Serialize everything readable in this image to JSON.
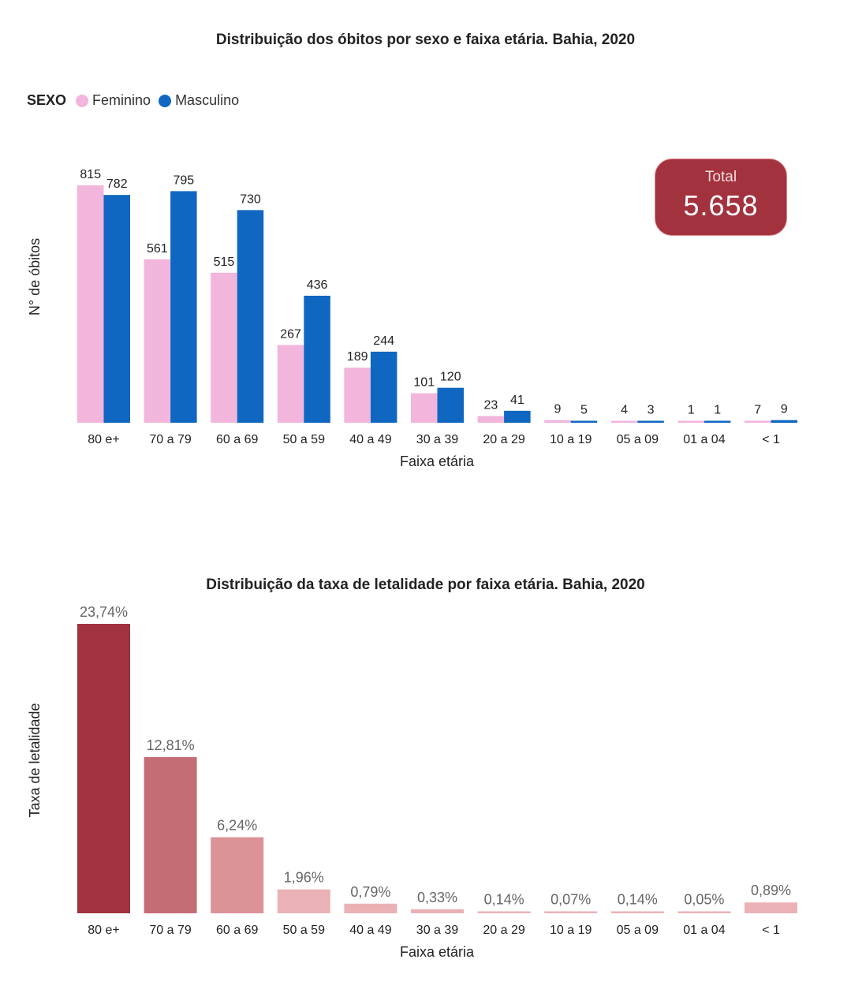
{
  "chart_data": [
    {
      "type": "bar",
      "title": "Distribuição dos óbitos por sexo e faixa etária. Bahia, 2020",
      "xlabel": "Faixa etária",
      "ylabel": "N° de óbitos",
      "legend_title": "SEXO",
      "legend_position": "top-left",
      "categories": [
        "80 e+",
        "70 a 79",
        "60 a 69",
        "50 a 59",
        "40 a 49",
        "30 a 39",
        "20 a 29",
        "10 a 19",
        "05 a 09",
        "01 a 04",
        "< 1"
      ],
      "series": [
        {
          "name": "Feminino",
          "color": "#f2b5dc",
          "values": [
            815,
            561,
            515,
            267,
            189,
            101,
            23,
            9,
            4,
            1,
            7
          ]
        },
        {
          "name": "Masculino",
          "color": "#0f67c1",
          "values": [
            782,
            795,
            730,
            436,
            244,
            120,
            41,
            5,
            3,
            1,
            9
          ]
        }
      ],
      "ylim": [
        0,
        815
      ],
      "grid": false,
      "total_card": {
        "label": "Total",
        "value": "5.658",
        "color": "#a3323f"
      }
    },
    {
      "type": "bar",
      "title": "Distribuição da taxa de letalidade por faixa etária. Bahia, 2020",
      "xlabel": "Faixa etária",
      "ylabel": "Taxa de letalidade",
      "categories": [
        "80 e+",
        "70 a 79",
        "60 a 69",
        "50 a 59",
        "40 a 49",
        "30 a 39",
        "20 a 29",
        "10 a 19",
        "05 a 09",
        "01 a 04",
        "< 1"
      ],
      "values": [
        23.74,
        12.81,
        6.24,
        1.96,
        0.79,
        0.33,
        0.14,
        0.07,
        0.14,
        0.05,
        0.89
      ],
      "value_labels": [
        "23,74%",
        "12,81%",
        "6,24%",
        "1,96%",
        "0,79%",
        "0,33%",
        "0,14%",
        "0,07%",
        "0,14%",
        "0,05%",
        "0,89%"
      ],
      "ylim": [
        0,
        23.74
      ],
      "grid": false,
      "colors": {
        "high": "#a3323f",
        "mid": "#c56d75",
        "low": "#db9398",
        "lowest": "#ebb2b5"
      }
    }
  ]
}
